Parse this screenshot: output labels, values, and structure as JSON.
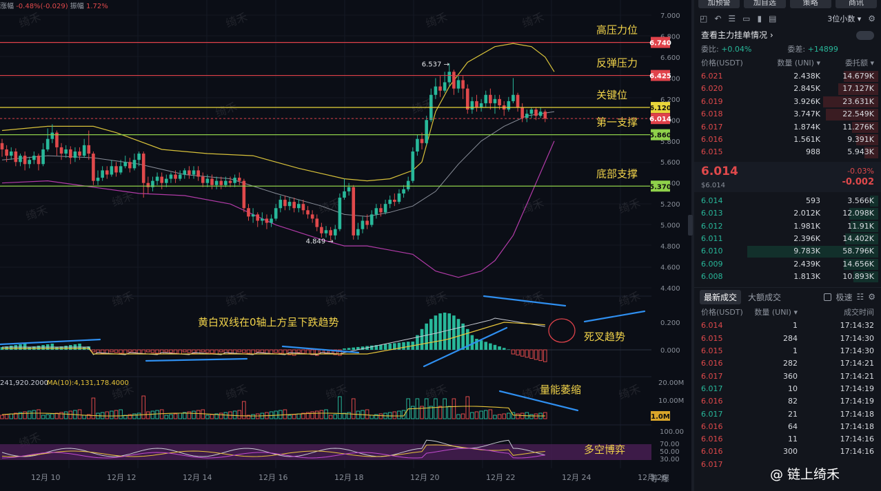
{
  "header": {
    "change_label": "涨幅",
    "change_value": "-0.48%(-0.029)",
    "amplitude_label": "振幅",
    "amplitude_value": "1.72%"
  },
  "watermark_text": "绮禾",
  "brand_watermark": "@ 链上绮禾",
  "chart_data": {
    "type": "candlestick",
    "price_axis": {
      "ticks": [
        "7.000",
        "6.800",
        "6.600",
        "6.400",
        "6.200",
        "6.000",
        "5.800",
        "5.600",
        "5.400",
        "5.200",
        "5.000",
        "4.800",
        "4.600",
        "4.400"
      ],
      "range": [
        4.4,
        7.0
      ]
    },
    "x_labels": [
      "12月 10",
      "12月 12",
      "12月 14",
      "12月 16",
      "12月 18",
      "12月 20",
      "12月 22",
      "12月 24",
      "12月 26"
    ],
    "hlines": [
      {
        "price": 6.74,
        "label": "6.740",
        "text": "高压力位",
        "color": "#e0424a"
      },
      {
        "price": 6.425,
        "label": "6.425",
        "text": "反弹压力",
        "color": "#e0424a"
      },
      {
        "price": 6.12,
        "label": "6.120",
        "text": "关键位",
        "color": "#e8d53a"
      },
      {
        "price": 5.86,
        "label": "5.860",
        "text": "第一支撑",
        "color": "#8fd14a"
      },
      {
        "price": 5.37,
        "label": "5.370",
        "text": "底部支撑",
        "color": "#8fd14a"
      }
    ],
    "current_price": {
      "price": 6.014,
      "label": "6.014",
      "color": "#e0424a"
    },
    "extremes": [
      {
        "label": "6.537",
        "price": 6.537
      },
      {
        "label": "4.849",
        "price": 4.849
      }
    ],
    "candles": [
      [
        5.78,
        5.72,
        5.82,
        5.65
      ],
      [
        5.72,
        5.66,
        5.76,
        5.6
      ],
      [
        5.66,
        5.7,
        5.74,
        5.62
      ],
      [
        5.7,
        5.6,
        5.73,
        5.56
      ],
      [
        5.6,
        5.66,
        5.68,
        5.56
      ],
      [
        5.66,
        5.58,
        5.7,
        5.52
      ],
      [
        5.58,
        5.62,
        5.65,
        5.54
      ],
      [
        5.62,
        5.66,
        5.7,
        5.58
      ],
      [
        5.66,
        5.58,
        5.68,
        5.52
      ],
      [
        5.58,
        5.72,
        5.78,
        5.56
      ],
      [
        5.72,
        5.82,
        5.92,
        5.7
      ],
      [
        5.82,
        5.88,
        5.96,
        5.78
      ],
      [
        5.88,
        5.74,
        5.9,
        5.66
      ],
      [
        5.74,
        5.68,
        5.78,
        5.62
      ],
      [
        5.68,
        5.72,
        5.76,
        5.64
      ],
      [
        5.72,
        5.64,
        5.75,
        5.58
      ],
      [
        5.64,
        5.7,
        5.74,
        5.6
      ],
      [
        5.7,
        5.66,
        5.74,
        5.62
      ],
      [
        5.66,
        5.76,
        5.82,
        5.64
      ],
      [
        5.76,
        5.68,
        5.9,
        5.62
      ],
      [
        5.68,
        5.42,
        5.7,
        5.38
      ],
      [
        5.42,
        5.45,
        5.52,
        5.38
      ],
      [
        5.45,
        5.52,
        5.56,
        5.42
      ],
      [
        5.52,
        5.48,
        5.56,
        5.44
      ],
      [
        5.48,
        5.56,
        5.62,
        5.46
      ],
      [
        5.56,
        5.5,
        5.6,
        5.46
      ],
      [
        5.5,
        5.56,
        5.62,
        5.48
      ],
      [
        5.56,
        5.6,
        5.66,
        5.54
      ],
      [
        5.6,
        5.54,
        5.64,
        5.5
      ],
      [
        5.54,
        5.62,
        5.68,
        5.52
      ],
      [
        5.62,
        5.68,
        5.7,
        5.56
      ],
      [
        5.68,
        5.4,
        5.7,
        5.26
      ],
      [
        5.4,
        5.36,
        5.46,
        5.3
      ],
      [
        5.36,
        5.42,
        5.46,
        5.32
      ],
      [
        5.42,
        5.46,
        5.5,
        5.38
      ],
      [
        5.46,
        5.4,
        5.5,
        5.34
      ],
      [
        5.4,
        5.44,
        5.48,
        5.36
      ],
      [
        5.44,
        5.48,
        5.5,
        5.4
      ],
      [
        5.48,
        5.44,
        5.52,
        5.4
      ],
      [
        5.44,
        5.48,
        5.52,
        5.42
      ],
      [
        5.48,
        5.52,
        5.54,
        5.44
      ],
      [
        5.52,
        5.48,
        5.56,
        5.44
      ],
      [
        5.48,
        5.52,
        5.56,
        5.44
      ],
      [
        5.52,
        5.46,
        5.56,
        5.42
      ],
      [
        5.46,
        5.4,
        5.5,
        5.36
      ],
      [
        5.4,
        5.44,
        5.48,
        5.36
      ],
      [
        5.44,
        5.38,
        5.48,
        5.34
      ],
      [
        5.38,
        5.42,
        5.46,
        5.34
      ],
      [
        5.42,
        5.38,
        5.46,
        5.34
      ],
      [
        5.38,
        5.42,
        5.46,
        5.36
      ],
      [
        5.42,
        5.4,
        5.46,
        5.36
      ],
      [
        5.4,
        5.45,
        5.48,
        5.36
      ],
      [
        5.45,
        5.42,
        5.5,
        5.38
      ],
      [
        5.42,
        5.16,
        5.44,
        5.12
      ],
      [
        5.16,
        5.08,
        5.2,
        5.04
      ],
      [
        5.08,
        5.1,
        5.16,
        5.02
      ],
      [
        5.1,
        5.04,
        5.12,
        4.98
      ],
      [
        5.04,
        5.06,
        5.12,
        5.0
      ],
      [
        5.06,
        5.02,
        5.1,
        4.96
      ],
      [
        5.02,
        5.06,
        5.1,
        4.98
      ],
      [
        5.06,
        5.16,
        5.2,
        5.04
      ],
      [
        5.16,
        5.24,
        5.28,
        5.12
      ],
      [
        5.24,
        5.18,
        5.28,
        5.14
      ],
      [
        5.18,
        5.22,
        5.26,
        5.14
      ],
      [
        5.22,
        5.16,
        5.26,
        5.12
      ],
      [
        5.16,
        5.2,
        5.24,
        5.12
      ],
      [
        5.2,
        5.14,
        5.24,
        5.1
      ],
      [
        5.14,
        5.1,
        5.18,
        5.06
      ],
      [
        5.1,
        5.06,
        5.14,
        5.02
      ],
      [
        5.06,
        4.98,
        5.1,
        4.94
      ],
      [
        4.98,
        4.92,
        5.02,
        4.88
      ],
      [
        4.92,
        4.95,
        4.99,
        4.88
      ],
      [
        4.95,
        4.9,
        4.98,
        4.85
      ],
      [
        4.9,
        4.96,
        5.0,
        4.86
      ],
      [
        4.96,
        5.26,
        5.3,
        4.94
      ],
      [
        5.26,
        5.32,
        5.44,
        5.24
      ],
      [
        5.32,
        5.36,
        5.4,
        5.28
      ],
      [
        5.36,
        4.9,
        5.38,
        4.86
      ],
      [
        4.9,
        4.96,
        5.02,
        4.86
      ],
      [
        4.96,
        5.04,
        5.08,
        4.92
      ],
      [
        5.04,
        5.0,
        5.1,
        4.96
      ],
      [
        5.0,
        5.1,
        5.14,
        4.98
      ],
      [
        5.1,
        5.16,
        5.2,
        5.06
      ],
      [
        5.16,
        5.12,
        5.2,
        5.08
      ],
      [
        5.12,
        5.2,
        5.24,
        5.1
      ],
      [
        5.2,
        5.24,
        5.28,
        5.16
      ],
      [
        5.24,
        5.22,
        5.3,
        5.18
      ],
      [
        5.22,
        5.3,
        5.34,
        5.2
      ],
      [
        5.3,
        5.34,
        5.38,
        5.26
      ],
      [
        5.34,
        5.42,
        5.46,
        5.32
      ],
      [
        5.42,
        5.7,
        5.74,
        5.4
      ],
      [
        5.7,
        5.82,
        5.86,
        5.66
      ],
      [
        5.82,
        5.78,
        5.88,
        5.72
      ],
      [
        5.78,
        6.0,
        6.04,
        5.76
      ],
      [
        6.0,
        6.24,
        6.3,
        5.98
      ],
      [
        6.24,
        6.32,
        6.4,
        6.2
      ],
      [
        6.32,
        6.28,
        6.42,
        6.22
      ],
      [
        6.28,
        6.36,
        6.46,
        6.26
      ],
      [
        6.36,
        6.46,
        6.54,
        6.32
      ],
      [
        6.46,
        6.3,
        6.48,
        6.24
      ],
      [
        6.3,
        6.38,
        6.42,
        6.26
      ],
      [
        6.38,
        6.3,
        6.42,
        6.2
      ],
      [
        6.3,
        6.1,
        6.34,
        6.06
      ],
      [
        6.1,
        6.18,
        6.22,
        6.06
      ],
      [
        6.18,
        6.12,
        6.24,
        6.08
      ],
      [
        6.12,
        6.16,
        6.2,
        6.08
      ],
      [
        6.16,
        6.24,
        6.28,
        6.12
      ],
      [
        6.24,
        6.16,
        6.3,
        6.1
      ],
      [
        6.16,
        6.2,
        6.24,
        6.06
      ],
      [
        6.2,
        6.14,
        6.24,
        6.1
      ],
      [
        6.14,
        6.1,
        6.18,
        6.04
      ],
      [
        6.1,
        6.18,
        6.22,
        6.08
      ],
      [
        6.18,
        6.24,
        6.4,
        6.16
      ],
      [
        6.24,
        6.12,
        6.26,
        6.08
      ],
      [
        6.12,
        6.02,
        6.16,
        5.98
      ],
      [
        6.02,
        6.06,
        6.1,
        5.98
      ],
      [
        6.06,
        6.1,
        6.12,
        6.02
      ],
      [
        6.1,
        6.04,
        6.12,
        6.0
      ],
      [
        6.04,
        6.08,
        6.12,
        6.02
      ],
      [
        6.08,
        6.014,
        6.1,
        5.98
      ]
    ],
    "bollinger": {
      "upper": [
        [
          0,
          5.9
        ],
        [
          10,
          5.94
        ],
        [
          20,
          5.94
        ],
        [
          25,
          5.88
        ],
        [
          35,
          5.72
        ],
        [
          45,
          5.68
        ],
        [
          55,
          5.66
        ],
        [
          65,
          5.54
        ],
        [
          75,
          5.44
        ],
        [
          80,
          5.42
        ],
        [
          85,
          5.44
        ],
        [
          90,
          5.52
        ],
        [
          92,
          5.6
        ],
        [
          95,
          6.08
        ],
        [
          98,
          6.32
        ],
        [
          102,
          6.55
        ],
        [
          108,
          6.7
        ],
        [
          112,
          6.73
        ],
        [
          116,
          6.7
        ],
        [
          119,
          6.6
        ],
        [
          121,
          6.46
        ]
      ],
      "mid": [
        [
          0,
          5.62
        ],
        [
          10,
          5.66
        ],
        [
          20,
          5.64
        ],
        [
          30,
          5.58
        ],
        [
          40,
          5.48
        ],
        [
          50,
          5.44
        ],
        [
          60,
          5.3
        ],
        [
          70,
          5.18
        ],
        [
          75,
          5.1
        ],
        [
          80,
          5.08
        ],
        [
          85,
          5.12
        ],
        [
          90,
          5.18
        ],
        [
          95,
          5.32
        ],
        [
          100,
          5.58
        ],
        [
          105,
          5.8
        ],
        [
          110,
          5.94
        ],
        [
          115,
          6.04
        ],
        [
          121,
          6.08
        ]
      ],
      "lower": [
        [
          0,
          5.4
        ],
        [
          10,
          5.42
        ],
        [
          20,
          5.36
        ],
        [
          30,
          5.3
        ],
        [
          40,
          5.28
        ],
        [
          50,
          5.2
        ],
        [
          60,
          5.0
        ],
        [
          70,
          4.86
        ],
        [
          75,
          4.8
        ],
        [
          80,
          4.8
        ],
        [
          85,
          4.76
        ],
        [
          90,
          4.72
        ],
        [
          95,
          4.56
        ],
        [
          100,
          4.5
        ],
        [
          105,
          4.56
        ],
        [
          108,
          4.66
        ],
        [
          112,
          4.9
        ],
        [
          115,
          5.2
        ],
        [
          118,
          5.5
        ],
        [
          121,
          5.8
        ]
      ]
    },
    "macd": {
      "zero_label": "0.000",
      "ticks": [
        {
          "value": 0.2,
          "label": "0.200"
        },
        {
          "value": 0.0,
          "label": "0.000"
        }
      ]
    },
    "volume": {
      "ma_label": "MA(10):4,131,178.4000",
      "left_label": "241,920.2000",
      "ticks": [
        "20.00M",
        "10.00M"
      ],
      "current_label": "1.0M"
    },
    "rsi": {
      "ticks": [
        "100.00",
        "70.00",
        "50.00",
        "30.00"
      ]
    }
  },
  "annotations": {
    "macd_note": "黄白双线在0轴上方呈下跌趋势",
    "death_cross": "死叉趋势",
    "volume_note": "量能萎缩",
    "rsi_note": "多空博弈"
  },
  "corner_glyphs": "等 爆",
  "panel": {
    "buttons": [
      "加预警",
      "加自选",
      "策略",
      "商讯"
    ],
    "tools": [
      "◰",
      "↶",
      "☰",
      "▭",
      "▮",
      "▤"
    ],
    "decimals": "3位小数",
    "gear": "⚙",
    "section_title": "查看主力挂单情况",
    "ratio_label": "委比:",
    "ratio_value": "+0.04%",
    "diff_label": "委差:",
    "diff_value": "+14899",
    "headers": [
      "价格(USDT)",
      "数量 (UNI)",
      "委托额"
    ],
    "asks": [
      {
        "price": "6.021",
        "qty": "2.438K",
        "total": "14.679K",
        "depth": 0.25
      },
      {
        "price": "6.020",
        "qty": "2.845K",
        "total": "17.127K",
        "depth": 0.29
      },
      {
        "price": "6.019",
        "qty": "3.926K",
        "total": "23.631K",
        "depth": 0.4
      },
      {
        "price": "6.018",
        "qty": "3.747K",
        "total": "22.549K",
        "depth": 0.38
      },
      {
        "price": "6.017",
        "qty": "1.874K",
        "total": "11.276K",
        "depth": 0.19
      },
      {
        "price": "6.016",
        "qty": "1.561K",
        "total": "9.391K",
        "depth": 0.16
      },
      {
        "price": "6.015",
        "qty": "988",
        "total": "5.943K",
        "depth": 0.1
      }
    ],
    "mid": {
      "price": "6.014",
      "sub": "$6.014",
      "pct": "-0.03%",
      "change": "-0.002"
    },
    "bids": [
      {
        "price": "6.014",
        "qty": "593",
        "total": "3.566K",
        "depth": 0.06
      },
      {
        "price": "6.013",
        "qty": "2.012K",
        "total": "12.098K",
        "depth": 0.21
      },
      {
        "price": "6.012",
        "qty": "1.981K",
        "total": "11.91K",
        "depth": 0.2
      },
      {
        "price": "6.011",
        "qty": "2.396K",
        "total": "14.402K",
        "depth": 0.24
      },
      {
        "price": "6.010",
        "qty": "9.783K",
        "total": "58.796K",
        "depth": 0.95
      },
      {
        "price": "6.009",
        "qty": "2.439K",
        "total": "14.656K",
        "depth": 0.25
      },
      {
        "price": "6.008",
        "qty": "1.813K",
        "total": "10.893K",
        "depth": 0.18
      }
    ],
    "tabs": [
      "最新成交",
      "大额成交"
    ],
    "fast_label": "极速",
    "trade_headers": [
      "价格(USDT)",
      "数量 (UNI)",
      "成交时间"
    ],
    "trades": [
      {
        "price": "6.014",
        "qty": "1",
        "time": "17:14:32",
        "side": "dn"
      },
      {
        "price": "6.015",
        "qty": "284",
        "time": "17:14:30",
        "side": "dn"
      },
      {
        "price": "6.015",
        "qty": "1",
        "time": "17:14:30",
        "side": "dn"
      },
      {
        "price": "6.016",
        "qty": "282",
        "time": "17:14:21",
        "side": "dn"
      },
      {
        "price": "6.017",
        "qty": "360",
        "time": "17:14:21",
        "side": "dn"
      },
      {
        "price": "6.017",
        "qty": "10",
        "time": "17:14:19",
        "side": "up"
      },
      {
        "price": "6.016",
        "qty": "82",
        "time": "17:14:19",
        "side": "dn"
      },
      {
        "price": "6.017",
        "qty": "21",
        "time": "17:14:18",
        "side": "up"
      },
      {
        "price": "6.016",
        "qty": "64",
        "time": "17:14:18",
        "side": "dn"
      },
      {
        "price": "6.016",
        "qty": "11",
        "time": "17:14:16",
        "side": "dn"
      },
      {
        "price": "6.016",
        "qty": "300",
        "time": "17:14:16",
        "side": "dn"
      },
      {
        "price": "6.017",
        "qty": "",
        "time": "",
        "side": "dn"
      }
    ]
  }
}
